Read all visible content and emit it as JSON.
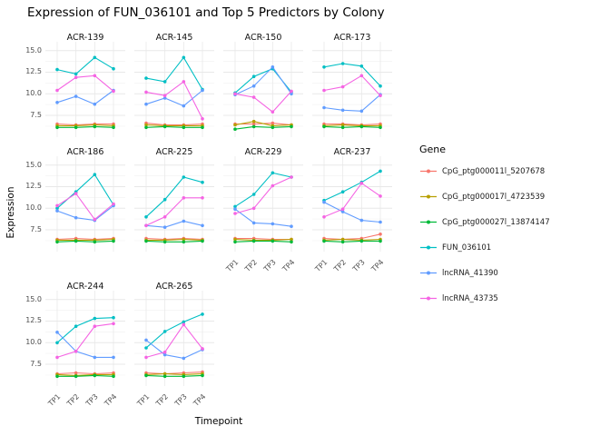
{
  "chart_data": {
    "type": "line",
    "title": "Expression of FUN_036101 and Top 5 Predictors by Colony",
    "xlabel": "Timepoint",
    "ylabel": "Expression",
    "legend_title": "Gene",
    "legend_position": "right",
    "grid": true,
    "x_categories": [
      "TP1",
      "TP2",
      "TP3",
      "TP4"
    ],
    "y_ticks": [
      7.5,
      10.0,
      12.5,
      15.0
    ],
    "ylim": [
      5.4,
      15.6
    ],
    "genes": [
      {
        "name": "CpG_ptg000011l_5207678",
        "color": "#F8766D"
      },
      {
        "name": "CpG_ptg000017l_4723539",
        "color": "#B79F00"
      },
      {
        "name": "CpG_ptg000027l_13874147",
        "color": "#00BA38"
      },
      {
        "name": "FUN_036101",
        "color": "#00BFC4"
      },
      {
        "name": "lncRNA_41390",
        "color": "#619CFF"
      },
      {
        "name": "lncRNA_43735",
        "color": "#F564E3"
      }
    ],
    "facets": [
      {
        "name": "ACR-139",
        "values": [
          [
            6.5,
            6.4,
            6.5,
            6.5
          ],
          [
            6.3,
            6.3,
            6.4,
            6.3
          ],
          [
            6.1,
            6.1,
            6.2,
            6.1
          ],
          [
            12.8,
            12.3,
            14.2,
            12.9
          ],
          [
            9.0,
            9.7,
            8.8,
            10.4
          ],
          [
            10.4,
            11.9,
            12.1,
            10.3
          ]
        ]
      },
      {
        "name": "ACR-145",
        "values": [
          [
            6.6,
            6.4,
            6.4,
            6.5
          ],
          [
            6.4,
            6.3,
            6.3,
            6.3
          ],
          [
            6.1,
            6.2,
            6.1,
            6.1
          ],
          [
            11.8,
            11.4,
            14.2,
            10.5
          ],
          [
            8.8,
            9.5,
            8.6,
            10.4
          ],
          [
            10.2,
            9.8,
            11.4,
            7.1
          ]
        ]
      },
      {
        "name": "ACR-150",
        "values": [
          [
            6.5,
            6.5,
            6.6,
            6.4
          ],
          [
            6.4,
            6.8,
            6.3,
            6.4
          ],
          [
            5.9,
            6.2,
            6.1,
            6.2
          ],
          [
            10.1,
            12.0,
            12.9,
            10.2
          ],
          [
            9.9,
            10.9,
            13.1,
            10.0
          ],
          [
            10.0,
            9.6,
            7.9,
            10.3
          ]
        ]
      },
      {
        "name": "ACR-173",
        "values": [
          [
            6.5,
            6.5,
            6.4,
            6.5
          ],
          [
            6.3,
            6.4,
            6.3,
            6.3
          ],
          [
            6.2,
            6.1,
            6.2,
            6.1
          ],
          [
            13.1,
            13.5,
            13.2,
            10.9
          ],
          [
            8.4,
            8.1,
            8.0,
            9.9
          ],
          [
            10.4,
            10.8,
            12.1,
            9.8
          ]
        ]
      },
      {
        "name": "ACR-186",
        "values": [
          [
            6.4,
            6.5,
            6.4,
            6.5
          ],
          [
            6.3,
            6.3,
            6.3,
            6.4
          ],
          [
            6.1,
            6.2,
            6.1,
            6.2
          ],
          [
            10.0,
            11.9,
            13.9,
            10.4
          ],
          [
            9.7,
            8.9,
            8.6,
            10.3
          ],
          [
            10.3,
            11.7,
            8.7,
            10.5
          ]
        ]
      },
      {
        "name": "ACR-225",
        "values": [
          [
            6.5,
            6.4,
            6.5,
            6.4
          ],
          [
            6.3,
            6.3,
            6.4,
            6.3
          ],
          [
            6.2,
            6.1,
            6.1,
            6.2
          ],
          [
            9.0,
            11.0,
            13.6,
            13.0
          ],
          [
            8.0,
            7.8,
            8.5,
            8.0
          ],
          [
            8.0,
            9.0,
            11.2,
            11.2
          ]
        ]
      },
      {
        "name": "ACR-229",
        "values": [
          [
            6.5,
            6.5,
            6.4,
            6.4
          ],
          [
            6.4,
            6.3,
            6.3,
            6.4
          ],
          [
            6.1,
            6.2,
            6.2,
            6.1
          ],
          [
            10.2,
            11.6,
            14.1,
            13.6
          ],
          [
            9.9,
            8.3,
            8.2,
            7.9
          ],
          [
            9.4,
            10.0,
            12.6,
            13.6
          ]
        ]
      },
      {
        "name": "ACR-237",
        "values": [
          [
            6.5,
            6.4,
            6.5,
            7.0
          ],
          [
            6.3,
            6.4,
            6.3,
            6.4
          ],
          [
            6.2,
            6.1,
            6.2,
            6.2
          ],
          [
            10.9,
            11.9,
            13.0,
            14.3
          ],
          [
            10.7,
            9.6,
            8.6,
            8.4
          ],
          [
            9.0,
            9.9,
            12.9,
            11.4
          ]
        ]
      },
      {
        "name": "ACR-244",
        "values": [
          [
            6.4,
            6.5,
            6.4,
            6.5
          ],
          [
            6.3,
            6.2,
            6.3,
            6.3
          ],
          [
            6.1,
            6.1,
            6.2,
            6.1
          ],
          [
            10.0,
            11.9,
            12.8,
            12.9
          ],
          [
            11.2,
            9.0,
            8.3,
            8.3
          ],
          [
            8.3,
            9.0,
            11.9,
            12.2
          ]
        ]
      },
      {
        "name": "ACR-265",
        "values": [
          [
            6.5,
            6.4,
            6.5,
            6.6
          ],
          [
            6.3,
            6.4,
            6.3,
            6.4
          ],
          [
            6.2,
            6.1,
            6.1,
            6.2
          ],
          [
            9.4,
            11.3,
            12.4,
            13.3
          ],
          [
            10.3,
            8.6,
            8.2,
            9.2
          ],
          [
            8.3,
            8.9,
            12.1,
            9.3
          ]
        ]
      }
    ]
  }
}
